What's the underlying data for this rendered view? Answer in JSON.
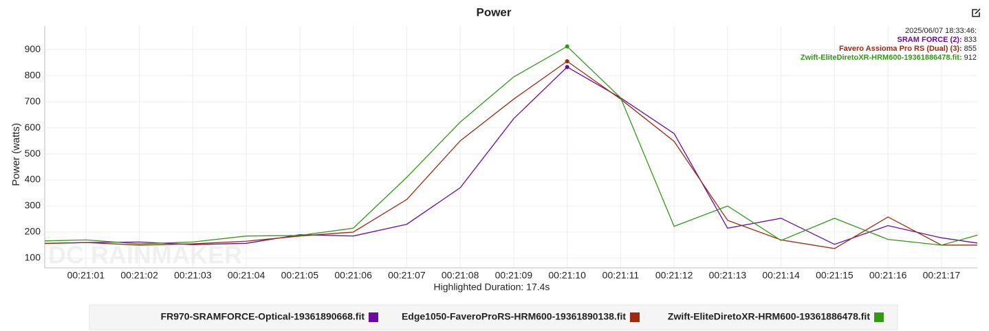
{
  "chart_data": {
    "type": "line",
    "title": "Power",
    "y_label": "Power (watts)",
    "x_label": "Highlighted Duration: 17.4s",
    "watermark": "DC RAINMAKER",
    "x": [
      0,
      1,
      2,
      3,
      4,
      5,
      6,
      7,
      8,
      9,
      10,
      11,
      12,
      13,
      14,
      15,
      16,
      17,
      18
    ],
    "xlim": [
      0.23,
      17.67
    ],
    "xticks": [
      {
        "value": 1,
        "label": "00:21:01"
      },
      {
        "value": 2,
        "label": "00:21:02"
      },
      {
        "value": 3,
        "label": "00:21:03"
      },
      {
        "value": 4,
        "label": "00:21:04"
      },
      {
        "value": 5,
        "label": "00:21:05"
      },
      {
        "value": 6,
        "label": "00:21:06"
      },
      {
        "value": 7,
        "label": "00:21:07"
      },
      {
        "value": 8,
        "label": "00:21:08"
      },
      {
        "value": 9,
        "label": "00:21:09"
      },
      {
        "value": 10,
        "label": "00:21:10"
      },
      {
        "value": 11,
        "label": "00:21:11"
      },
      {
        "value": 12,
        "label": "00:21:12"
      },
      {
        "value": 13,
        "label": "00:21:13"
      },
      {
        "value": 14,
        "label": "00:21:14"
      },
      {
        "value": 15,
        "label": "00:21:15"
      },
      {
        "value": 16,
        "label": "00:21:16"
      },
      {
        "value": 17,
        "label": "00:21:17"
      }
    ],
    "ylim": [
      63,
      990
    ],
    "yticks": [
      100,
      200,
      300,
      400,
      500,
      600,
      700,
      800,
      900
    ],
    "grid": true,
    "series": [
      {
        "name": "FR970-SRAMFORCE-Optical-19361890668.fit",
        "color": "#6c0aa0",
        "values": [
          156,
          160,
          162,
          152,
          157,
          190,
          185,
          230,
          370,
          635,
          833,
          715,
          578,
          215,
          253,
          153,
          225,
          178,
          148
        ]
      },
      {
        "name": "Edge1050-FaveroProRS-HRM600-19361890138.fit",
        "color": "#9b2a0e",
        "values": [
          155,
          160,
          150,
          155,
          165,
          185,
          200,
          325,
          550,
          710,
          855,
          710,
          548,
          245,
          170,
          137,
          258,
          150,
          150
        ]
      },
      {
        "name": "Zwift-EliteDiretoXR-HRM600-19361886478.fit",
        "color": "#2f9a12",
        "values": [
          165,
          170,
          155,
          162,
          185,
          187,
          215,
          410,
          622,
          795,
          912,
          715,
          222,
          300,
          168,
          253,
          172,
          150,
          207
        ]
      }
    ],
    "tooltip": {
      "date": "2025/06/07 18:33:46:",
      "entries": [
        {
          "name": "SRAM FORCE (2):",
          "value": 833
        },
        {
          "name": "Favero Assioma Pro RS (Dual) (3):",
          "value": 855
        },
        {
          "name": "Zwift-EliteDiretoXR-HRM600-19361886478.fit:",
          "value": 912
        }
      ]
    },
    "highlight_index": 10
  }
}
